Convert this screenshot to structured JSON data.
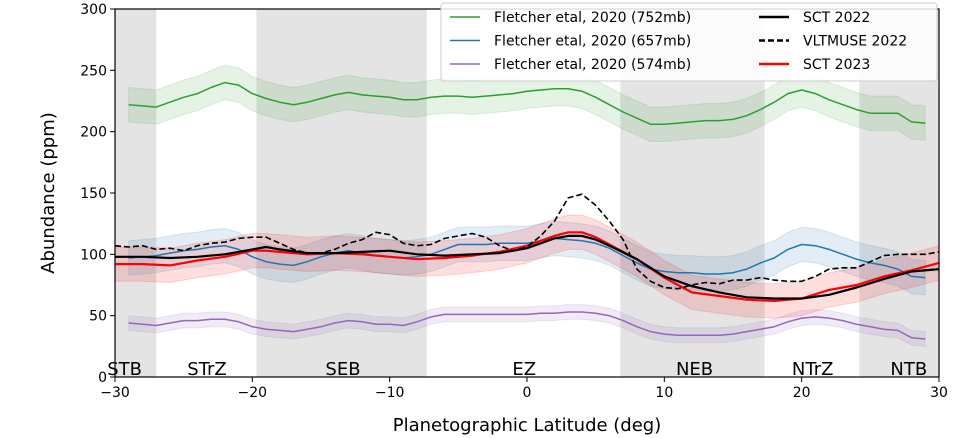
{
  "chart_data": {
    "type": "line",
    "title": "",
    "xlabel": "Planetographic Latitude (deg)",
    "ylabel": "Abundance (ppm)",
    "xlim": [
      -30,
      30
    ],
    "ylim": [
      0,
      300
    ],
    "xticks": [
      -30,
      -20,
      -10,
      0,
      10,
      20,
      30
    ],
    "xtick_labels": [
      "−30",
      "−20",
      "−10",
      "0",
      "10",
      "20",
      "30"
    ],
    "yticks": [
      0,
      50,
      100,
      150,
      200,
      250,
      300
    ],
    "ytick_labels": [
      "0",
      "50",
      "100",
      "150",
      "200",
      "250",
      "300"
    ],
    "grid": false,
    "legend_position": "top-right",
    "shaded_bands": [
      [
        -30,
        -27
      ],
      [
        -19.7,
        -7.3
      ],
      [
        6.8,
        17.3
      ],
      [
        24.2,
        30
      ]
    ],
    "region_labels": [
      {
        "text": "STB",
        "x": -29.3
      },
      {
        "text": "STrZ",
        "x": -23.3
      },
      {
        "text": "SEB",
        "x": -13.4
      },
      {
        "text": "EZ",
        "x": -0.2
      },
      {
        "text": "NEB",
        "x": 12.2
      },
      {
        "text": "NTrZ",
        "x": 20.8
      },
      {
        "text": "NTB",
        "x": 27.8
      }
    ],
    "series": [
      {
        "name": "Fletcher etal, 2020 (752mb)",
        "color": "#2ca02c",
        "style": "solid",
        "band": 14,
        "x": [
          -29,
          -28,
          -27,
          -26,
          -25,
          -24,
          -23,
          -22,
          -21,
          -20,
          -19,
          -18,
          -17,
          -16,
          -15,
          -14,
          -13,
          -12,
          -11,
          -10,
          -9,
          -8,
          -7,
          -6,
          -5,
          -4,
          -3,
          -2,
          -1,
          0,
          1,
          2,
          3,
          4,
          5,
          6,
          7,
          8,
          9,
          10,
          11,
          12,
          13,
          14,
          15,
          16,
          17,
          18,
          19,
          20,
          21,
          22,
          23,
          24,
          25,
          26,
          27,
          28,
          29
        ],
        "y": [
          222,
          221,
          220,
          224,
          228,
          231,
          236,
          240,
          238,
          231,
          227,
          224,
          222,
          224,
          227,
          230,
          232,
          230,
          229,
          228,
          226,
          226,
          228,
          229,
          229,
          228,
          229,
          230,
          231,
          233,
          234,
          235,
          235,
          233,
          228,
          222,
          216,
          211,
          206,
          206,
          207,
          208,
          209,
          209,
          210,
          213,
          218,
          224,
          231,
          234,
          231,
          226,
          222,
          218,
          215,
          215,
          215,
          208,
          207
        ]
      },
      {
        "name": "Fletcher etal, 2020 (657mb)",
        "color": "#1f77b4",
        "style": "solid",
        "band": 14,
        "x": [
          -29,
          -28,
          -27,
          -26,
          -25,
          -24,
          -23,
          -22,
          -21,
          -20,
          -19,
          -18,
          -17,
          -16,
          -15,
          -14,
          -13,
          -12,
          -11,
          -10,
          -9,
          -8,
          -7,
          -6,
          -5,
          -4,
          -3,
          -2,
          -1,
          0,
          1,
          2,
          3,
          4,
          5,
          6,
          7,
          8,
          9,
          10,
          11,
          12,
          13,
          14,
          15,
          16,
          17,
          18,
          19,
          20,
          21,
          22,
          23,
          24,
          25,
          26,
          27,
          28,
          29
        ],
        "y": [
          97,
          98,
          99,
          101,
          103,
          104,
          106,
          107,
          104,
          98,
          94,
          92,
          91,
          94,
          98,
          101,
          103,
          101,
          99,
          98,
          97,
          98,
          100,
          104,
          108,
          108,
          108,
          109,
          109,
          109,
          111,
          113,
          112,
          111,
          109,
          105,
          99,
          93,
          88,
          86,
          85,
          85,
          84,
          84,
          85,
          88,
          93,
          97,
          104,
          108,
          107,
          104,
          100,
          96,
          93,
          91,
          88,
          82,
          81
        ]
      },
      {
        "name": "Fletcher etal, 2020 (574mb)",
        "color": "#9467bd",
        "style": "solid",
        "band": 6,
        "x": [
          -29,
          -28,
          -27,
          -26,
          -25,
          -24,
          -23,
          -22,
          -21,
          -20,
          -19,
          -18,
          -17,
          -16,
          -15,
          -14,
          -13,
          -12,
          -11,
          -10,
          -9,
          -8,
          -7,
          -6,
          -5,
          -4,
          -3,
          -2,
          -1,
          0,
          1,
          2,
          3,
          4,
          5,
          6,
          7,
          8,
          9,
          10,
          11,
          12,
          13,
          14,
          15,
          16,
          17,
          18,
          19,
          20,
          21,
          22,
          23,
          24,
          25,
          26,
          27,
          28,
          29
        ],
        "y": [
          44,
          43,
          42,
          44,
          46,
          46,
          47,
          47,
          45,
          41,
          39,
          38,
          37,
          39,
          41,
          44,
          46,
          45,
          43,
          43,
          42,
          45,
          49,
          51,
          51,
          51,
          51,
          51,
          51,
          51,
          52,
          52,
          53,
          53,
          52,
          50,
          46,
          41,
          37,
          35,
          34,
          34,
          34,
          34,
          35,
          37,
          39,
          41,
          45,
          48,
          49,
          48,
          46,
          43,
          41,
          39,
          38,
          32,
          31
        ]
      },
      {
        "name": "SCT 2022",
        "color": "#000000",
        "style": "solid",
        "band": 0,
        "x": [
          -30,
          -28,
          -26,
          -24,
          -22,
          -20,
          -19,
          -18,
          -16,
          -14,
          -12,
          -10,
          -8,
          -6,
          -4,
          -2,
          0,
          1,
          2,
          3,
          4,
          5,
          6,
          8,
          10,
          12,
          14,
          16,
          18,
          20,
          22,
          24,
          26,
          28,
          30
        ],
        "y": [
          98,
          98,
          97,
          98,
          100,
          104,
          106,
          104,
          101,
          101,
          102,
          103,
          100,
          99,
          100,
          101,
          105,
          109,
          113,
          115,
          115,
          112,
          107,
          96,
          82,
          74,
          69,
          65,
          64,
          64,
          67,
          73,
          80,
          86,
          88
        ]
      },
      {
        "name": "VLTMUSE 2022",
        "color": "#000000",
        "style": "dashed",
        "band": 0,
        "x": [
          -30,
          -29,
          -28,
          -27,
          -26,
          -25,
          -24,
          -23,
          -22,
          -21,
          -20,
          -19,
          -18,
          -17,
          -16,
          -15,
          -14,
          -13,
          -12,
          -11,
          -10,
          -9,
          -8,
          -7,
          -6,
          -5,
          -4,
          -3,
          -2,
          -1,
          0,
          1,
          2,
          3,
          4,
          5,
          6,
          7,
          8,
          9,
          10,
          11,
          12,
          13,
          14,
          15,
          16,
          17,
          18,
          19,
          20,
          21,
          22,
          23,
          24,
          25,
          26,
          27,
          28,
          29,
          30
        ],
        "y": [
          107,
          106,
          107,
          104,
          105,
          103,
          107,
          109,
          110,
          113,
          114,
          114,
          109,
          104,
          101,
          101,
          104,
          109,
          112,
          118,
          116,
          109,
          107,
          108,
          113,
          115,
          117,
          114,
          107,
          103,
          106,
          115,
          127,
          146,
          149,
          140,
          127,
          112,
          88,
          78,
          73,
          72,
          75,
          77,
          76,
          79,
          79,
          81,
          79,
          78,
          78,
          82,
          88,
          89,
          89,
          94,
          99,
          100,
          100,
          100,
          102
        ]
      },
      {
        "name": "SCT 2023",
        "color": "#ff0000",
        "style": "solid",
        "band": 14,
        "x": [
          -30,
          -28,
          -26,
          -24,
          -22,
          -20,
          -19,
          -18,
          -16,
          -14,
          -12,
          -10,
          -8,
          -6,
          -4,
          -2,
          0,
          1,
          2,
          3,
          4,
          5,
          6,
          8,
          10,
          12,
          14,
          16,
          18,
          20,
          22,
          24,
          26,
          28,
          30
        ],
        "y": [
          92,
          92,
          91,
          95,
          98,
          103,
          103,
          102,
          100,
          101,
          100,
          98,
          96,
          97,
          99,
          102,
          107,
          111,
          115,
          118,
          118,
          114,
          108,
          96,
          81,
          69,
          66,
          63,
          62,
          64,
          71,
          75,
          82,
          87,
          93
        ]
      }
    ]
  }
}
